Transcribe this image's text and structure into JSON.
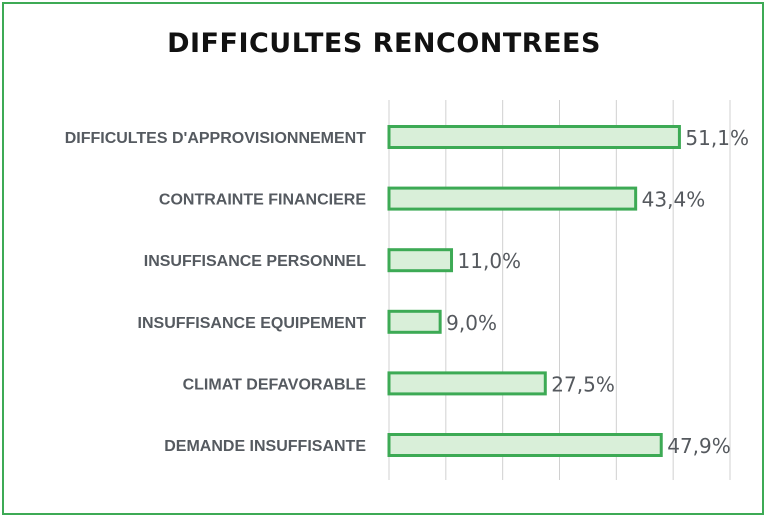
{
  "chart_data": {
    "type": "bar",
    "orientation": "horizontal",
    "title": "DIFFICULTES RENCONTREES",
    "categories": [
      "DIFFICULTES D'APPROVISIONNEMENT",
      "CONTRAINTE FINANCIERE",
      "INSUFFISANCE PERSONNEL",
      "INSUFFISANCE EQUIPEMENT",
      "CLIMAT DEFAVORABLE",
      "DEMANDE INSUFFISANTE"
    ],
    "values": [
      51.1,
      43.4,
      11.0,
      9.0,
      27.5,
      47.9
    ],
    "value_labels": [
      "51,1%",
      "43,4%",
      "11,0%",
      "9,0%",
      "27,5%",
      "47,9%"
    ],
    "xlim": [
      0,
      60
    ],
    "grid": true,
    "legend": "none",
    "colors": {
      "bar_fill": "#d9efd9",
      "bar_stroke": "#3daa55",
      "grid": "#d0d0d0",
      "frame": "#3daa55"
    }
  }
}
